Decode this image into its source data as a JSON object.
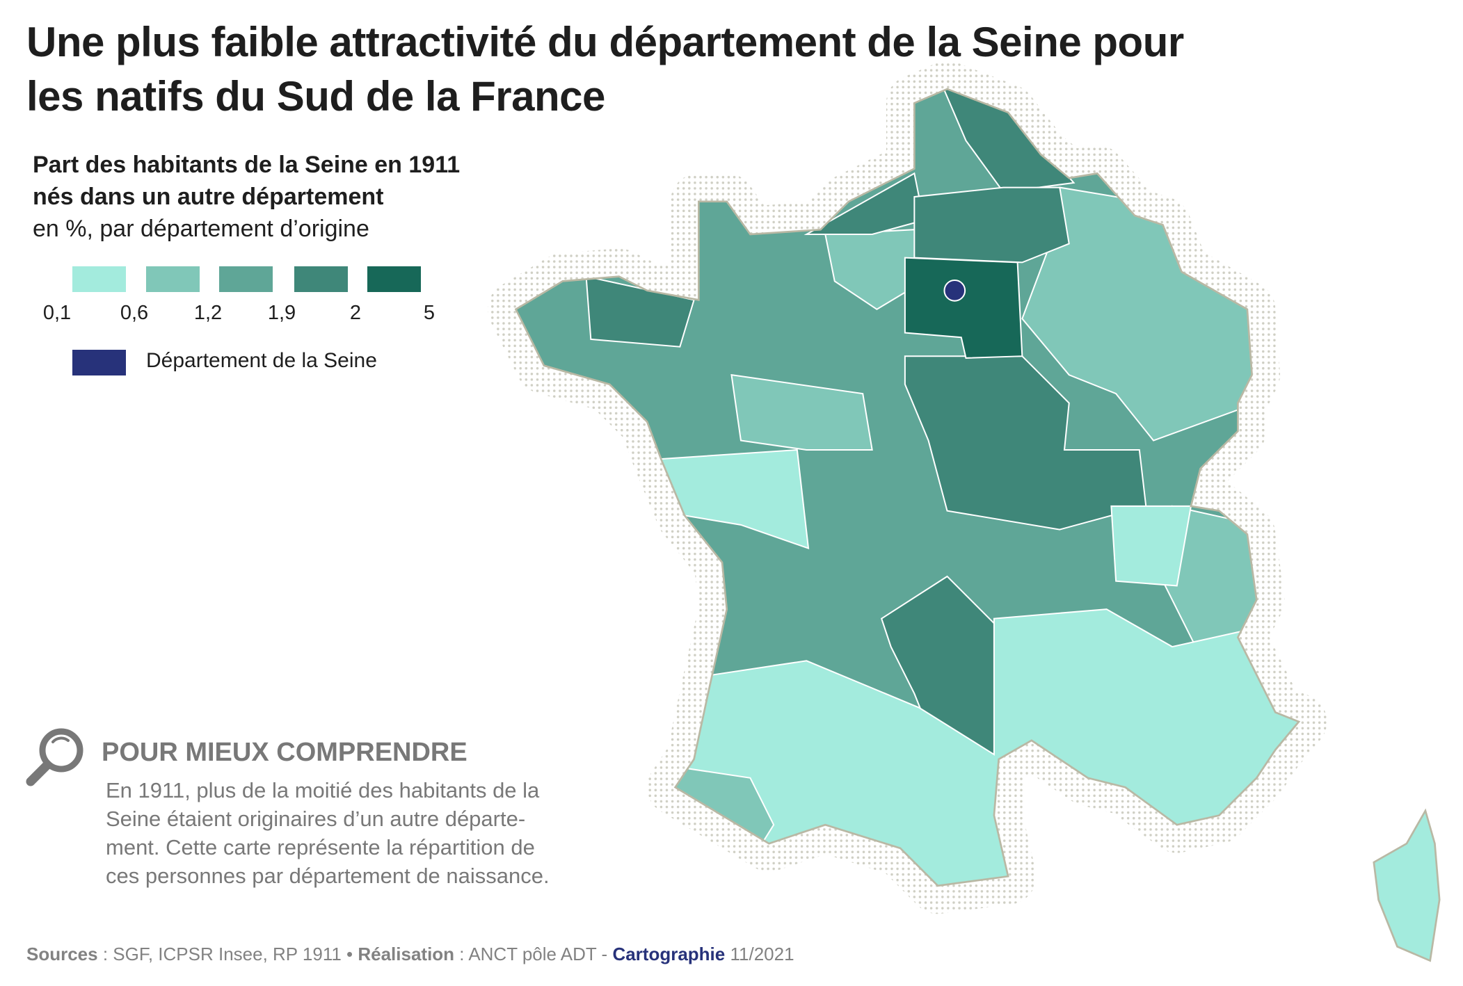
{
  "title": {
    "line1": "Une plus faible attractivité du département de la Seine pour",
    "line2": "les natifs du Sud de la France"
  },
  "legend": {
    "title_line1": "Part des habitants de la Seine en 1911",
    "title_line2": "nés dans un autre département",
    "unit": "en %, par département d’origine",
    "classes": [
      {
        "color": "#A3EBDD"
      },
      {
        "color": "#80C7B8"
      },
      {
        "color": "#5FA697"
      },
      {
        "color": "#3F8779"
      },
      {
        "color": "#176858"
      }
    ],
    "breaks": [
      "0,1",
      "0,6",
      "1,2",
      "1,9",
      "2",
      "5"
    ],
    "seine_color": "#27327A",
    "seine_label": "Département de la Seine"
  },
  "explainer": {
    "icon": "magnifier-icon",
    "heading": "POUR MIEUX COMPRENDRE",
    "lines": [
      "En 1911, plus de la moitié des habitants de la",
      "Seine étaient originaires d’un autre départe-",
      "ment. Cette carte représente la répartition de",
      "ces personnes par département de naissance."
    ]
  },
  "footer": {
    "sources_label": "Sources",
    "sources_text": " : SGF, ICPSR Insee, RP 1911 • ",
    "realisation_label": "Réalisation",
    "realisation_text": " : ANCT pôle ADT - ",
    "carto_label": "Cartographie",
    "date": " 11/2021"
  }
}
